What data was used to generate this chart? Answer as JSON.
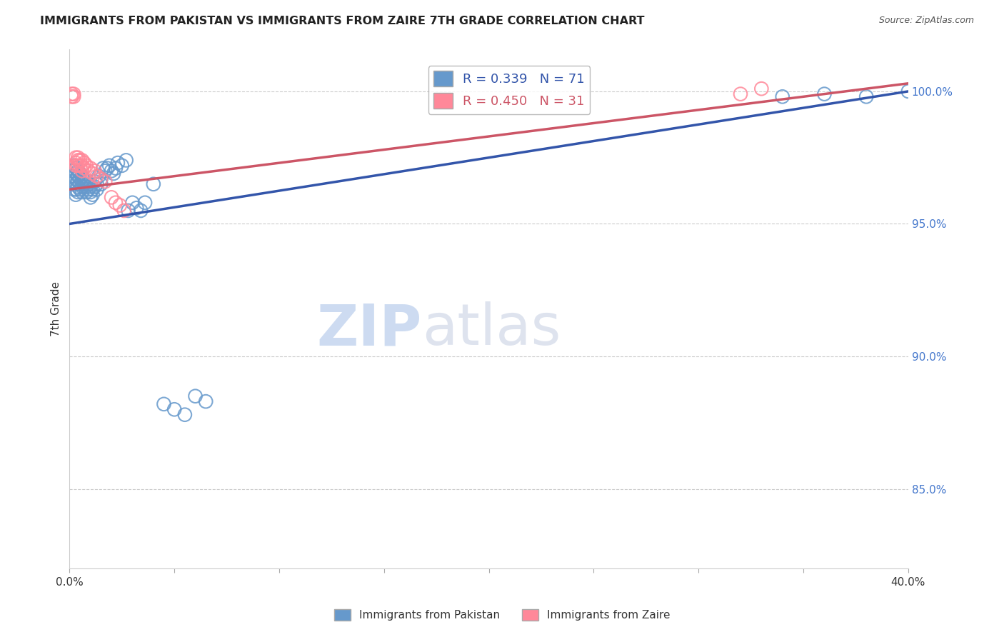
{
  "title": "IMMIGRANTS FROM PAKISTAN VS IMMIGRANTS FROM ZAIRE 7TH GRADE CORRELATION CHART",
  "source": "Source: ZipAtlas.com",
  "ylabel": "7th Grade",
  "legend_blue_label": "Immigrants from Pakistan",
  "legend_pink_label": "Immigrants from Zaire",
  "R_blue": 0.339,
  "N_blue": 71,
  "R_pink": 0.45,
  "N_pink": 31,
  "color_blue": "#6699CC",
  "color_pink": "#FF8899",
  "color_line_blue": "#3355AA",
  "color_line_pink": "#CC5566",
  "background": "#FFFFFF",
  "xlim": [
    0.0,
    0.4
  ],
  "ylim": [
    0.82,
    1.016
  ],
  "right_yticks": [
    0.85,
    0.9,
    0.95,
    1.0
  ],
  "right_yticklabels": [
    "85.0%",
    "90.0%",
    "95.0%",
    "100.0%"
  ],
  "blue_line_x": [
    0.0,
    0.4
  ],
  "blue_line_y": [
    0.95,
    1.0
  ],
  "pink_line_x": [
    0.0,
    0.4
  ],
  "pink_line_y": [
    0.963,
    1.003
  ],
  "pk_x": [
    0.001,
    0.001,
    0.001,
    0.002,
    0.002,
    0.002,
    0.002,
    0.002,
    0.003,
    0.003,
    0.003,
    0.003,
    0.003,
    0.003,
    0.004,
    0.004,
    0.004,
    0.004,
    0.004,
    0.005,
    0.005,
    0.005,
    0.005,
    0.006,
    0.006,
    0.006,
    0.006,
    0.007,
    0.007,
    0.008,
    0.008,
    0.008,
    0.009,
    0.009,
    0.01,
    0.01,
    0.01,
    0.011,
    0.011,
    0.012,
    0.012,
    0.013,
    0.013,
    0.014,
    0.015,
    0.015,
    0.016,
    0.017,
    0.018,
    0.019,
    0.02,
    0.021,
    0.022,
    0.023,
    0.025,
    0.027,
    0.028,
    0.03,
    0.032,
    0.034,
    0.036,
    0.04,
    0.045,
    0.05,
    0.055,
    0.06,
    0.065,
    0.34,
    0.36,
    0.38,
    0.4
  ],
  "pk_y": [
    0.97,
    0.968,
    0.966,
    0.972,
    0.97,
    0.968,
    0.966,
    0.963,
    0.971,
    0.969,
    0.967,
    0.965,
    0.963,
    0.961,
    0.97,
    0.968,
    0.966,
    0.964,
    0.962,
    0.969,
    0.967,
    0.965,
    0.963,
    0.968,
    0.966,
    0.964,
    0.962,
    0.967,
    0.965,
    0.966,
    0.964,
    0.962,
    0.965,
    0.963,
    0.964,
    0.962,
    0.96,
    0.963,
    0.961,
    0.966,
    0.964,
    0.965,
    0.963,
    0.968,
    0.967,
    0.965,
    0.971,
    0.97,
    0.971,
    0.972,
    0.97,
    0.969,
    0.971,
    0.973,
    0.972,
    0.974,
    0.955,
    0.958,
    0.956,
    0.955,
    0.958,
    0.965,
    0.882,
    0.88,
    0.878,
    0.885,
    0.883,
    0.998,
    0.999,
    0.998,
    1.0
  ],
  "zr_x": [
    0.001,
    0.001,
    0.002,
    0.002,
    0.003,
    0.003,
    0.003,
    0.004,
    0.004,
    0.004,
    0.005,
    0.005,
    0.006,
    0.006,
    0.006,
    0.007,
    0.007,
    0.008,
    0.009,
    0.01,
    0.011,
    0.012,
    0.013,
    0.015,
    0.017,
    0.02,
    0.022,
    0.024,
    0.026,
    0.32,
    0.33
  ],
  "zr_y": [
    0.998,
    0.999,
    0.998,
    0.999,
    0.975,
    0.973,
    0.972,
    0.975,
    0.974,
    0.972,
    0.974,
    0.972,
    0.974,
    0.972,
    0.97,
    0.973,
    0.971,
    0.972,
    0.97,
    0.971,
    0.969,
    0.97,
    0.968,
    0.967,
    0.966,
    0.96,
    0.958,
    0.957,
    0.955,
    0.999,
    1.001
  ]
}
